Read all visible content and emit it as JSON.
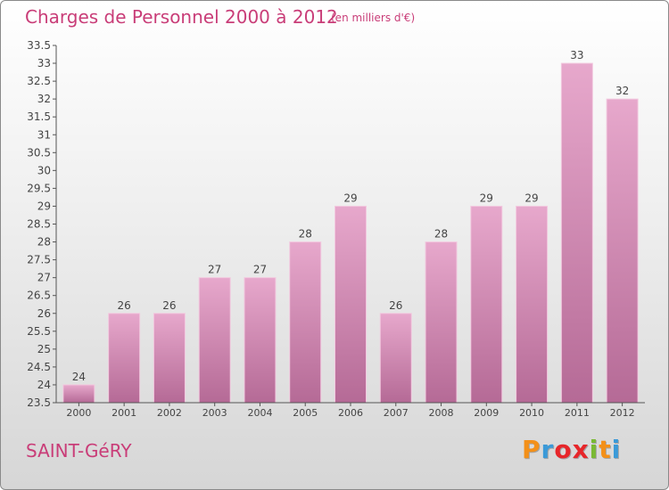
{
  "header": {
    "title": "Charges de Personnel 2000 à 2012",
    "subtitle": "(en milliers d'€)"
  },
  "footer": {
    "commune": "SAINT-GéRY",
    "logo": {
      "letters": [
        "P",
        "r",
        "o",
        "x",
        "i",
        "t",
        "i"
      ],
      "colors": [
        "#f39019",
        "#3b9ad8",
        "#e7262a",
        "#e7262a",
        "#7ab934",
        "#f39019",
        "#3b9ad8"
      ]
    }
  },
  "colors": {
    "bar_top": "#e7a8cc",
    "bar_bottom": "#b56a96",
    "axis": "#555555",
    "text": "#444444"
  },
  "chart_data": {
    "type": "bar",
    "title": "Charges de Personnel 2000 à 2012",
    "subtitle": "(en milliers d'€)",
    "categories": [
      "2000",
      "2001",
      "2002",
      "2003",
      "2004",
      "2005",
      "2006",
      "2007",
      "2008",
      "2009",
      "2010",
      "2011",
      "2012"
    ],
    "values": [
      24,
      26,
      26,
      27,
      27,
      28,
      29,
      26,
      28,
      29,
      29,
      33,
      32
    ],
    "ylim": [
      23.5,
      33.5
    ],
    "yticks": [
      "23.5",
      "24",
      "24.5",
      "25",
      "25.5",
      "26",
      "26.5",
      "27",
      "27.5",
      "28",
      "28.5",
      "29",
      "29.5",
      "30",
      "30.5",
      "31",
      "31.5",
      "32",
      "32.5",
      "33",
      "33.5"
    ],
    "grid": false,
    "xlabel": "",
    "ylabel": ""
  }
}
